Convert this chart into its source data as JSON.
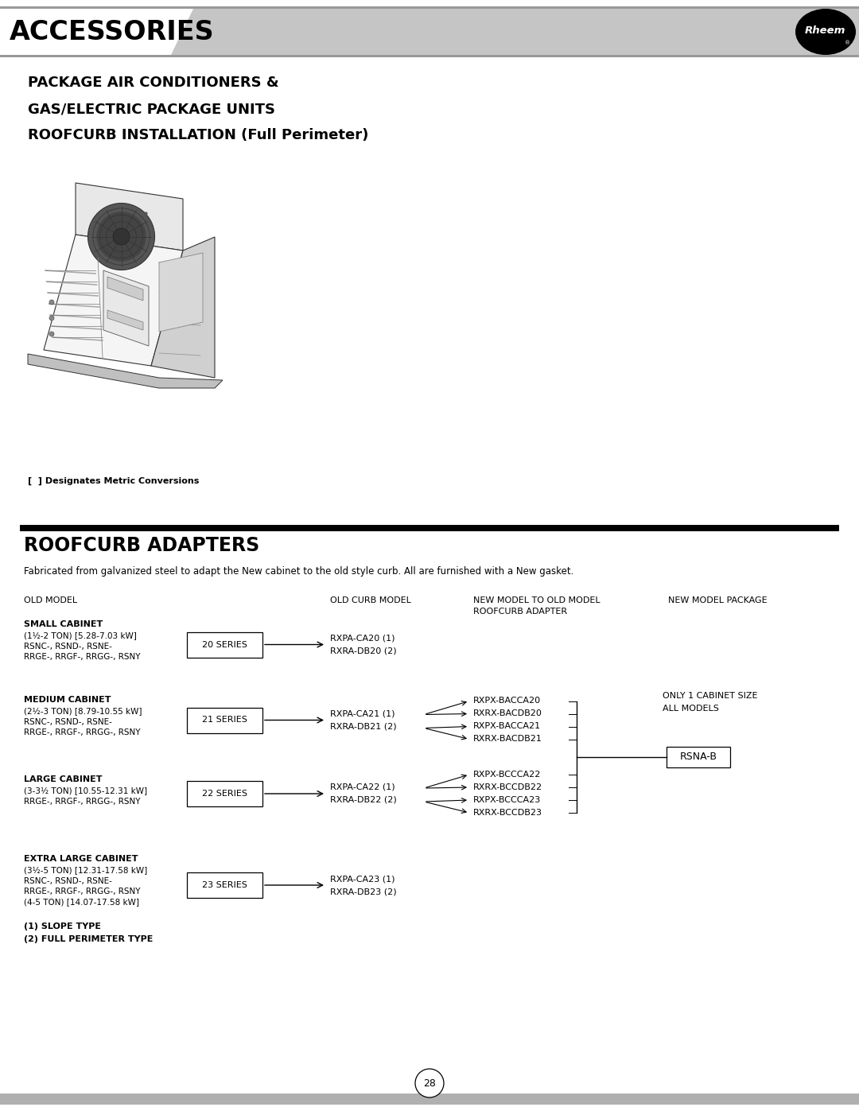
{
  "title_header": "ACCESSORIES",
  "page_bg": "#ffffff",
  "header_bg": "#c8c8c8",
  "section_title_line1": "PACKAGE AIR CONDITIONERS &",
  "section_title_line2": "GAS/ELECTRIC PACKAGE UNITS",
  "section_title_line3": "ROOFCURB INSTALLATION (Full Perimeter)",
  "metric_note": "[  ] Designates Metric Conversions",
  "roofcurb_title": "ROOFCURB ADAPTERS",
  "roofcurb_desc": "Fabricated from galvanized steel to adapt the New cabinet to the old style curb. All are furnished with a New gasket.",
  "col0": "OLD MODEL",
  "col1": "OLD CURB MODEL",
  "col2a": "NEW MODEL TO OLD MODEL",
  "col2b": "ROOFCURB ADAPTER",
  "col3": "NEW MODEL PACKAGE",
  "only1a": "ONLY 1 CABINET SIZE",
  "only1b": "ALL MODELS",
  "rsna_b": "RSNA-B",
  "slope_note": "(1) SLOPE TYPE",
  "perimeter_note": "(2) FULL PERIMETER TYPE",
  "page_number": "28",
  "rows": [
    {
      "cabinet": "SMALL CABINET",
      "ton": "(1½-2 TON) [5.28-7.03 kW]",
      "line2": "RSNC-, RSND-, RSNE-",
      "line3": "RRGE-, RRGF-, RRGG-, RSNY",
      "line4": "",
      "line5": "",
      "series": "20 SERIES",
      "curb1": "RXPA-CA20 (1)",
      "curb2": "RXRA-DB20 (2)",
      "new_models": []
    },
    {
      "cabinet": "MEDIUM CABINET",
      "ton": "(2½-3 TON) [8.79-10.55 kW]",
      "line2": "RSNC-, RSND-, RSNE-",
      "line3": "RRGE-, RRGF-, RRGG-, RSNY",
      "line4": "",
      "line5": "",
      "series": "21 SERIES",
      "curb1": "RXPA-CA21 (1)",
      "curb2": "RXRA-DB21 (2)",
      "new_models": [
        "RXPX-BACCA20",
        "RXRX-BACDB20",
        "RXPX-BACCA21",
        "RXRX-BACDB21"
      ]
    },
    {
      "cabinet": "LARGE CABINET",
      "ton": "(3-3½ TON) [10.55-12.31 kW]",
      "line2": "RRGE-, RRGF-, RRGG-, RSNY",
      "line3": "",
      "line4": "",
      "line5": "",
      "series": "22 SERIES",
      "curb1": "RXPA-CA22 (1)",
      "curb2": "RXRA-DB22 (2)",
      "new_models": [
        "RXPX-BCCCA22",
        "RXRX-BCCDB22",
        "RXPX-BCCCA23",
        "RXRX-BCCDB23"
      ]
    },
    {
      "cabinet": "EXTRA LARGE CABINET",
      "ton": "(3½-5 TON) [12.31-17.58 kW]",
      "line2": "RSNC-, RSND-, RSNE-",
      "line3": "RRGE-, RRGF-, RRGG-, RSNY",
      "line4": "(4-5 TON) [14.07-17.58 kW]",
      "line5": "",
      "series": "23 SERIES",
      "curb1": "RXPA-CA23 (1)",
      "curb2": "RXRA-DB23 (2)",
      "new_models": []
    }
  ]
}
